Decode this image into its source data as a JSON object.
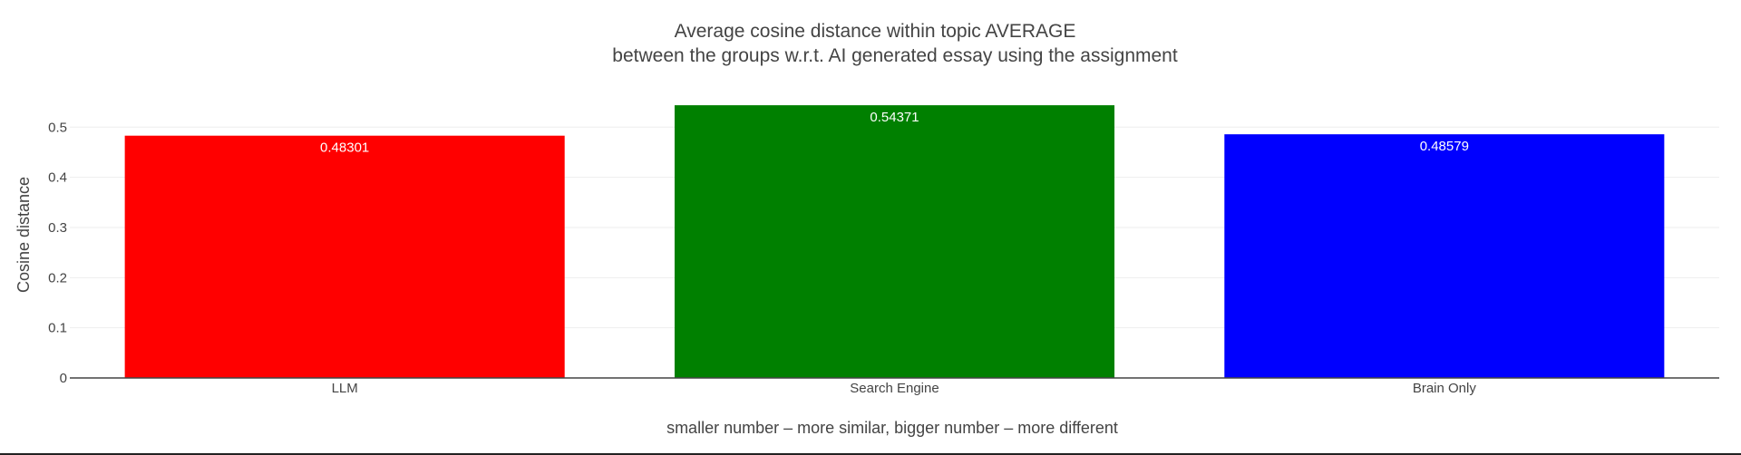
{
  "chart_data": {
    "type": "bar",
    "title_lines": [
      "Average cosine distance within topic AVERAGE",
      "between the groups w.r.t. AI generated essay using the assignment"
    ],
    "xlabel": "smaller number – more similar, bigger number – more different",
    "ylabel": "Cosine distance",
    "categories": [
      "LLM",
      "Search Engine",
      "Brain Only"
    ],
    "values": [
      0.48301,
      0.54371,
      0.48579
    ],
    "value_labels": [
      "0.48301",
      "0.54371",
      "0.48579"
    ],
    "colors": [
      "#ff0000",
      "#008000",
      "#0000ff"
    ],
    "yticks": [
      0,
      0.1,
      0.2,
      0.3,
      0.4,
      0.5
    ],
    "ytick_labels": [
      "0",
      "0.1",
      "0.2",
      "0.3",
      "0.4",
      "0.5"
    ],
    "ylim": [
      0,
      0.5439
    ],
    "grid": true,
    "legend": "none"
  }
}
